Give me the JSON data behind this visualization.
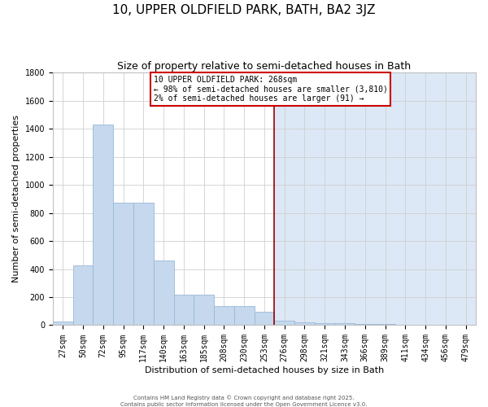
{
  "title": "10, UPPER OLDFIELD PARK, BATH, BA2 3JZ",
  "subtitle": "Size of property relative to semi-detached houses in Bath",
  "xlabel": "Distribution of semi-detached houses by size in Bath",
  "ylabel": "Number of semi-detached properties",
  "bar_values": [
    25,
    425,
    1430,
    870,
    870,
    460,
    215,
    215,
    135,
    135,
    95,
    30,
    22,
    14,
    12,
    8,
    7,
    5,
    4,
    3,
    0
  ],
  "bin_labels": [
    "27sqm",
    "50sqm",
    "72sqm",
    "95sqm",
    "117sqm",
    "140sqm",
    "163sqm",
    "185sqm",
    "208sqm",
    "230sqm",
    "253sqm",
    "276sqm",
    "298sqm",
    "321sqm",
    "343sqm",
    "366sqm",
    "389sqm",
    "411sqm",
    "434sqm",
    "456sqm",
    "479sqm"
  ],
  "red_line_index": 11,
  "ylim": [
    0,
    1800
  ],
  "yticks": [
    0,
    200,
    400,
    600,
    800,
    1000,
    1200,
    1400,
    1600,
    1800
  ],
  "bar_color": "#c5d8ed",
  "bar_edge_color": "#9ab8d8",
  "bg_color_left": "#ffffff",
  "bg_color_right": "#dce8f5",
  "red_line_color": "#990000",
  "annotation_text": "10 UPPER OLDFIELD PARK: 268sqm\n← 98% of semi-detached houses are smaller (3,810)\n2% of semi-detached houses are larger (91) →",
  "annotation_box_color": "#cc0000",
  "grid_color": "#d0d0d0",
  "footer1": "Contains HM Land Registry data © Crown copyright and database right 2025.",
  "footer2": "Contains public sector information licensed under the Open Government Licence v3.0.",
  "title_fontsize": 11,
  "subtitle_fontsize": 9,
  "tick_fontsize": 7,
  "ylabel_fontsize": 8,
  "xlabel_fontsize": 8,
  "annotation_fontsize": 7,
  "footer_fontsize": 5
}
